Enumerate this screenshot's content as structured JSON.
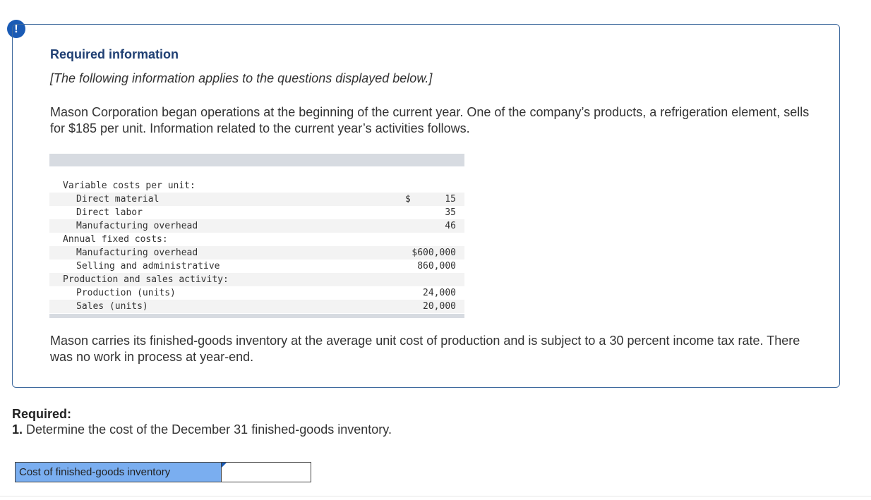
{
  "alert": {
    "icon": "exclamation-icon",
    "glyph": "!"
  },
  "info": {
    "title": "Required information",
    "applies_note": "[The following information applies to the questions displayed below.]",
    "intro": "Mason Corporation began operations at the beginning of the current year. One of the company’s products, a refrigeration element, sells for $185 per unit. Information related to the current year’s activities follows.",
    "note": "Mason carries its finished-goods inventory at the average unit cost of production and is subject to a 30 percent income tax rate. There was no work in process at year-end."
  },
  "table": {
    "rows": [
      {
        "label": "Variable costs per unit:",
        "value": "",
        "dollar": ""
      },
      {
        "label": "Direct material",
        "value": "15",
        "dollar": "$"
      },
      {
        "label": "Direct labor",
        "value": "35",
        "dollar": ""
      },
      {
        "label": "Manufacturing overhead",
        "value": "46",
        "dollar": ""
      },
      {
        "label": "Annual fixed costs:",
        "value": "",
        "dollar": ""
      },
      {
        "label": "Manufacturing overhead",
        "value": "$600,000",
        "dollar": ""
      },
      {
        "label": "Selling and administrative",
        "value": "860,000",
        "dollar": ""
      },
      {
        "label": "Production and sales activity:",
        "value": "",
        "dollar": ""
      },
      {
        "label": "Production (units)",
        "value": "24,000",
        "dollar": ""
      },
      {
        "label": "Sales (units)",
        "value": "20,000",
        "dollar": ""
      }
    ]
  },
  "required": {
    "heading": "Required:",
    "question_number": "1.",
    "question_text": "Determine the cost of the December 31 finished-goods inventory."
  },
  "answer": {
    "label": "Cost of finished-goods inventory",
    "value": "",
    "placeholder": ""
  },
  "colors": {
    "accent": "#1a5bb5",
    "label_fill": "#7aaef0",
    "box_border": "#3f6a9e"
  }
}
